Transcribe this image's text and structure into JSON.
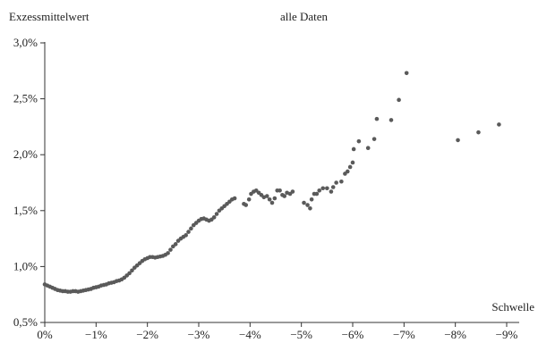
{
  "chart_data": {
    "type": "scatter",
    "title": "alle Daten",
    "ylabel": "Exzessmittelwert",
    "xlabel": "Schwelle",
    "xlim": [
      0,
      -9
    ],
    "ylim": [
      0.5,
      3.0
    ],
    "x_ticks": [
      "0%",
      "−1%",
      "−2%",
      "−3%",
      "−4%",
      "−5%",
      "−6%",
      "−7%",
      "−8%",
      "−9%"
    ],
    "y_ticks": [
      "0,5%",
      "1,0%",
      "1,5%",
      "2,0%",
      "2,5%",
      "3,0%"
    ],
    "grid": false,
    "point_color": "#5a5a5a",
    "series": [
      {
        "points": [
          [
            0.0,
            0.84
          ],
          [
            -0.05,
            0.83
          ],
          [
            -0.1,
            0.82
          ],
          [
            -0.15,
            0.81
          ],
          [
            -0.2,
            0.8
          ],
          [
            -0.25,
            0.79
          ],
          [
            -0.3,
            0.785
          ],
          [
            -0.35,
            0.78
          ],
          [
            -0.4,
            0.78
          ],
          [
            -0.45,
            0.775
          ],
          [
            -0.5,
            0.775
          ],
          [
            -0.55,
            0.78
          ],
          [
            -0.6,
            0.78
          ],
          [
            -0.65,
            0.775
          ],
          [
            -0.7,
            0.78
          ],
          [
            -0.75,
            0.785
          ],
          [
            -0.8,
            0.79
          ],
          [
            -0.85,
            0.795
          ],
          [
            -0.9,
            0.8
          ],
          [
            -0.95,
            0.81
          ],
          [
            -1.0,
            0.815
          ],
          [
            -1.05,
            0.82
          ],
          [
            -1.1,
            0.83
          ],
          [
            -1.15,
            0.835
          ],
          [
            -1.2,
            0.84
          ],
          [
            -1.25,
            0.85
          ],
          [
            -1.3,
            0.855
          ],
          [
            -1.35,
            0.86
          ],
          [
            -1.4,
            0.87
          ],
          [
            -1.45,
            0.875
          ],
          [
            -1.5,
            0.885
          ],
          [
            -1.55,
            0.9
          ],
          [
            -1.6,
            0.92
          ],
          [
            -1.65,
            0.94
          ],
          [
            -1.7,
            0.965
          ],
          [
            -1.75,
            0.99
          ],
          [
            -1.8,
            1.01
          ],
          [
            -1.85,
            1.03
          ],
          [
            -1.9,
            1.05
          ],
          [
            -1.95,
            1.065
          ],
          [
            -2.0,
            1.075
          ],
          [
            -2.05,
            1.085
          ],
          [
            -2.1,
            1.085
          ],
          [
            -2.15,
            1.08
          ],
          [
            -2.2,
            1.085
          ],
          [
            -2.25,
            1.09
          ],
          [
            -2.3,
            1.095
          ],
          [
            -2.35,
            1.105
          ],
          [
            -2.4,
            1.12
          ],
          [
            -2.45,
            1.15
          ],
          [
            -2.5,
            1.18
          ],
          [
            -2.55,
            1.2
          ],
          [
            -2.6,
            1.23
          ],
          [
            -2.65,
            1.25
          ],
          [
            -2.7,
            1.265
          ],
          [
            -2.75,
            1.28
          ],
          [
            -2.8,
            1.31
          ],
          [
            -2.85,
            1.34
          ],
          [
            -2.9,
            1.37
          ],
          [
            -2.95,
            1.39
          ],
          [
            -3.0,
            1.41
          ],
          [
            -3.05,
            1.425
          ],
          [
            -3.1,
            1.43
          ],
          [
            -3.15,
            1.42
          ],
          [
            -3.2,
            1.41
          ],
          [
            -3.25,
            1.42
          ],
          [
            -3.3,
            1.44
          ],
          [
            -3.35,
            1.47
          ],
          [
            -3.4,
            1.5
          ],
          [
            -3.45,
            1.52
          ],
          [
            -3.5,
            1.54
          ],
          [
            -3.55,
            1.56
          ],
          [
            -3.6,
            1.58
          ],
          [
            -3.65,
            1.6
          ],
          [
            -3.7,
            1.61
          ],
          [
            -3.88,
            1.56
          ],
          [
            -3.92,
            1.55
          ],
          [
            -3.98,
            1.6
          ],
          [
            -4.02,
            1.65
          ],
          [
            -4.07,
            1.67
          ],
          [
            -4.12,
            1.68
          ],
          [
            -4.17,
            1.66
          ],
          [
            -4.22,
            1.64
          ],
          [
            -4.27,
            1.62
          ],
          [
            -4.33,
            1.63
          ],
          [
            -4.38,
            1.6
          ],
          [
            -4.43,
            1.57
          ],
          [
            -4.48,
            1.61
          ],
          [
            -4.53,
            1.68
          ],
          [
            -4.58,
            1.68
          ],
          [
            -4.63,
            1.64
          ],
          [
            -4.67,
            1.63
          ],
          [
            -4.72,
            1.66
          ],
          [
            -4.78,
            1.65
          ],
          [
            -4.83,
            1.67
          ],
          [
            -5.05,
            1.57
          ],
          [
            -5.12,
            1.55
          ],
          [
            -5.17,
            1.52
          ],
          [
            -5.2,
            1.6
          ],
          [
            -5.25,
            1.65
          ],
          [
            -5.3,
            1.65
          ],
          [
            -5.35,
            1.68
          ],
          [
            -5.42,
            1.7
          ],
          [
            -5.5,
            1.7
          ],
          [
            -5.58,
            1.67
          ],
          [
            -5.62,
            1.71
          ],
          [
            -5.68,
            1.75
          ],
          [
            -5.78,
            1.76
          ],
          [
            -5.85,
            1.83
          ],
          [
            -5.9,
            1.85
          ],
          [
            -5.95,
            1.89
          ],
          [
            -6.0,
            1.93
          ],
          [
            -6.02,
            2.05
          ],
          [
            -6.12,
            2.12
          ],
          [
            -6.3,
            2.06
          ],
          [
            -6.42,
            2.14
          ],
          [
            -6.47,
            2.32
          ],
          [
            -6.75,
            2.31
          ],
          [
            -6.9,
            2.49
          ],
          [
            -7.05,
            2.73
          ],
          [
            -8.05,
            2.13
          ],
          [
            -8.45,
            2.2
          ],
          [
            -8.85,
            2.27
          ]
        ]
      }
    ]
  }
}
